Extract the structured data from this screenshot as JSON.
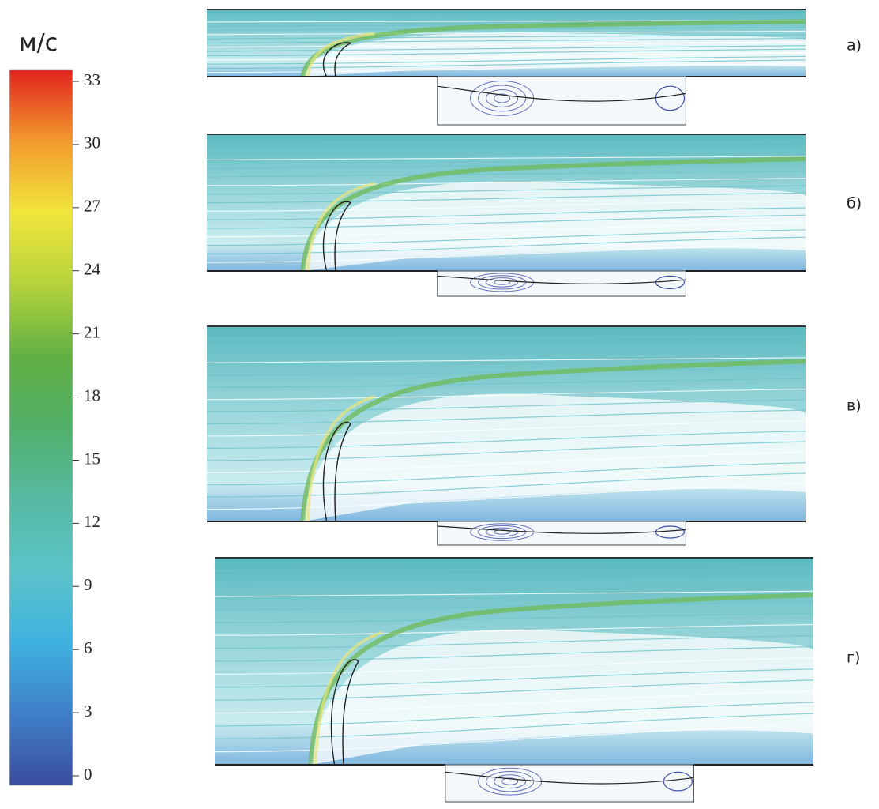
{
  "colorbar": {
    "unit": "м/с",
    "lim": [
      0,
      33
    ],
    "ticks": [
      0,
      3,
      6,
      9,
      12,
      15,
      18,
      21,
      24,
      27,
      30,
      33
    ]
  },
  "panels": [
    {
      "label": "а)"
    },
    {
      "label": "б)"
    },
    {
      "label": "в)"
    },
    {
      "label": "г)"
    }
  ]
}
